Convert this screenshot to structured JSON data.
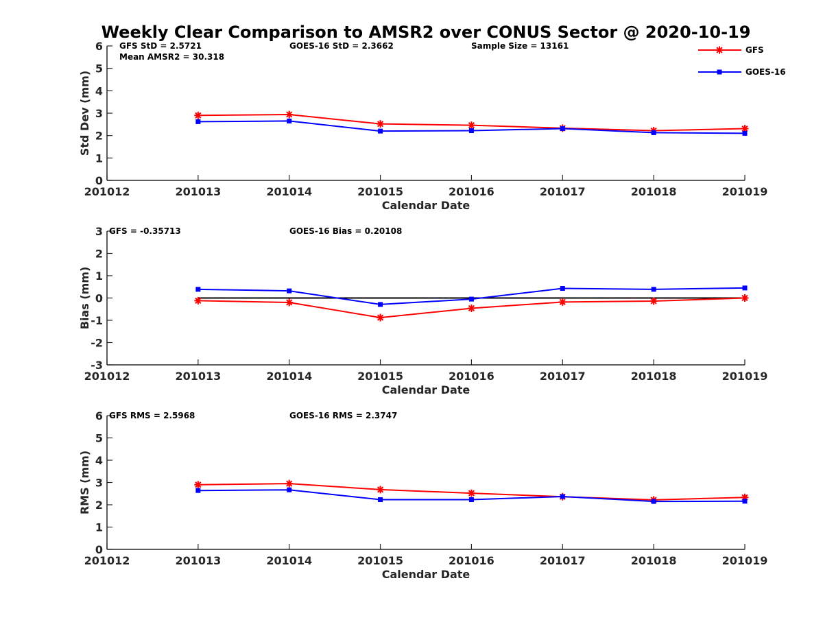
{
  "title": "Weekly Clear Comparison to AMSR2 over CONUS Sector @ 2020-10-19",
  "legend": {
    "placement": "top-right",
    "entries": [
      {
        "name": "GFS",
        "color": "#ff0000",
        "marker": "star"
      },
      {
        "name": "GOES-16",
        "color": "#0000ff",
        "marker": "square"
      }
    ]
  },
  "chart_data": [
    {
      "type": "line",
      "xlabel": "Calendar Date",
      "ylabel": "Std Dev (mm)",
      "x_ticks": [
        "201012",
        "201013",
        "201014",
        "201015",
        "201016",
        "201017",
        "201018",
        "201019"
      ],
      "ylim": [
        0,
        6
      ],
      "y_ticks": [
        "0",
        "1",
        "2",
        "3",
        "4",
        "5",
        "6"
      ],
      "annotations": [
        "GFS StD = 2.5721",
        "Mean AMSR2 = 30.318",
        "GOES-16 StD = 2.3662",
        "Sample Size = 13161"
      ],
      "series": [
        {
          "name": "GFS",
          "color": "#ff0000",
          "marker": "star",
          "x": [
            "201013",
            "201014",
            "201015",
            "201016",
            "201017",
            "201018",
            "201019"
          ],
          "values": [
            2.9,
            2.94,
            2.52,
            2.46,
            2.33,
            2.22,
            2.31
          ]
        },
        {
          "name": "GOES-16",
          "color": "#0000ff",
          "marker": "square",
          "x": [
            "201013",
            "201014",
            "201015",
            "201016",
            "201017",
            "201018",
            "201019"
          ],
          "values": [
            2.62,
            2.65,
            2.2,
            2.22,
            2.31,
            2.13,
            2.1
          ]
        }
      ]
    },
    {
      "type": "line",
      "xlabel": "Calendar Date",
      "ylabel": "Bias (mm)",
      "x_ticks": [
        "201012",
        "201013",
        "201014",
        "201015",
        "201016",
        "201017",
        "201018",
        "201019"
      ],
      "ylim": [
        -3,
        3
      ],
      "y_ticks": [
        "-3",
        "-2",
        "-1",
        "0",
        "1",
        "2",
        "3"
      ],
      "zero_line": true,
      "annotations": [
        "GFS = -0.35713",
        "GOES-16 Bias  = 0.20108"
      ],
      "series": [
        {
          "name": "GFS",
          "color": "#ff0000",
          "marker": "star",
          "x": [
            "201013",
            "201014",
            "201015",
            "201016",
            "201017",
            "201018",
            "201019"
          ],
          "values": [
            -0.12,
            -0.2,
            -0.88,
            -0.46,
            -0.18,
            -0.14,
            0.0
          ]
        },
        {
          "name": "GOES-16",
          "color": "#0000ff",
          "marker": "square",
          "x": [
            "201013",
            "201014",
            "201015",
            "201016",
            "201017",
            "201018",
            "201019"
          ],
          "values": [
            0.39,
            0.32,
            -0.29,
            -0.05,
            0.43,
            0.39,
            0.45
          ]
        }
      ]
    },
    {
      "type": "line",
      "xlabel": "Calendar Date",
      "ylabel": "RMS (mm)",
      "x_ticks": [
        "201012",
        "201013",
        "201014",
        "201015",
        "201016",
        "201017",
        "201018",
        "201019"
      ],
      "ylim": [
        0,
        6
      ],
      "y_ticks": [
        "0",
        "1",
        "2",
        "3",
        "4",
        "5",
        "6"
      ],
      "annotations": [
        "GFS RMS = 2.5968",
        "GOES-16 RMS = 2.3747"
      ],
      "series": [
        {
          "name": "GFS",
          "color": "#ff0000",
          "marker": "star",
          "x": [
            "201013",
            "201014",
            "201015",
            "201016",
            "201017",
            "201018",
            "201019"
          ],
          "values": [
            2.9,
            2.95,
            2.68,
            2.52,
            2.36,
            2.22,
            2.33
          ]
        },
        {
          "name": "GOES-16",
          "color": "#0000ff",
          "marker": "square",
          "x": [
            "201013",
            "201014",
            "201015",
            "201016",
            "201017",
            "201018",
            "201019"
          ],
          "values": [
            2.64,
            2.67,
            2.23,
            2.23,
            2.37,
            2.15,
            2.16
          ]
        }
      ]
    }
  ]
}
